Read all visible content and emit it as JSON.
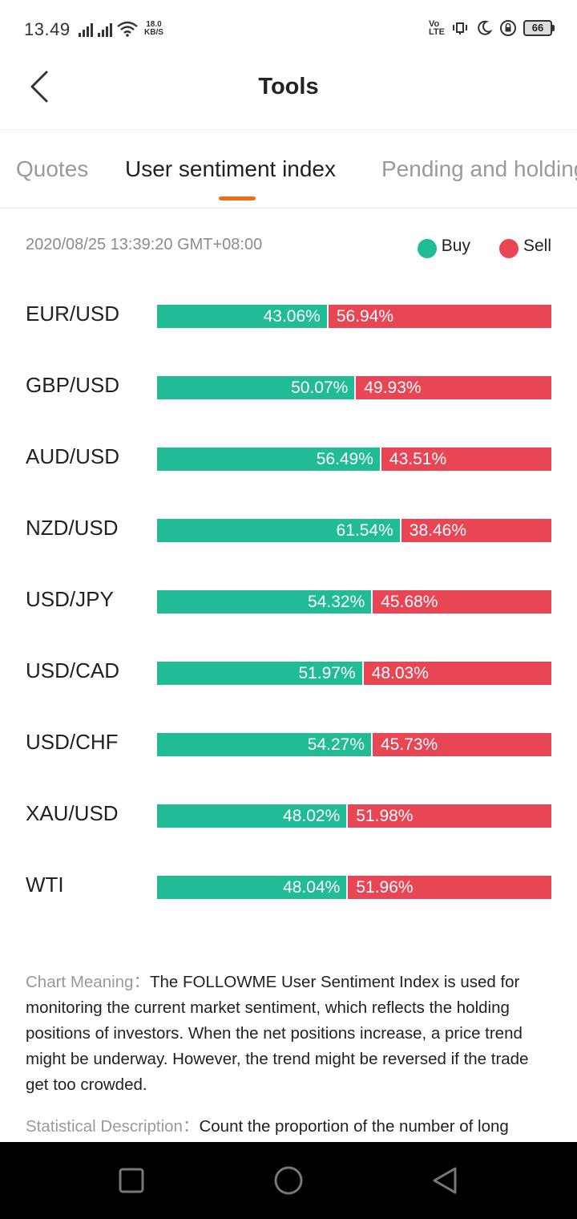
{
  "status_bar": {
    "time": "13.49",
    "net_speed_value": "18.0",
    "net_speed_unit": "KB/S",
    "volte_top": "Vo",
    "volte_bottom": "LTE",
    "battery": "66"
  },
  "header": {
    "title": "Tools"
  },
  "tabs": [
    {
      "label": "Quotes",
      "active": false
    },
    {
      "label": "User sentiment index",
      "active": true
    },
    {
      "label": "Pending and holdings",
      "active": false
    }
  ],
  "timestamp": "2020/08/25 13:39:20 GMT+08:00",
  "legend": {
    "buy": "Buy",
    "sell": "Sell"
  },
  "colors": {
    "buy": "#21bb95",
    "sell": "#e84655",
    "accent": "#f26b1d"
  },
  "sentiment": [
    {
      "pair": "EUR/USD",
      "buy": 43.06,
      "sell": 56.94,
      "buy_label": "43.06%",
      "sell_label": "56.94%"
    },
    {
      "pair": "GBP/USD",
      "buy": 50.07,
      "sell": 49.93,
      "buy_label": "50.07%",
      "sell_label": "49.93%"
    },
    {
      "pair": "AUD/USD",
      "buy": 56.49,
      "sell": 43.51,
      "buy_label": "56.49%",
      "sell_label": "43.51%"
    },
    {
      "pair": "NZD/USD",
      "buy": 61.54,
      "sell": 38.46,
      "buy_label": "61.54%",
      "sell_label": "38.46%"
    },
    {
      "pair": "USD/JPY",
      "buy": 54.32,
      "sell": 45.68,
      "buy_label": "54.32%",
      "sell_label": "45.68%"
    },
    {
      "pair": "USD/CAD",
      "buy": 51.97,
      "sell": 48.03,
      "buy_label": "51.97%",
      "sell_label": "48.03%"
    },
    {
      "pair": "USD/CHF",
      "buy": 54.27,
      "sell": 45.73,
      "buy_label": "54.27%",
      "sell_label": "45.73%"
    },
    {
      "pair": "XAU/USD",
      "buy": 48.02,
      "sell": 51.98,
      "buy_label": "48.02%",
      "sell_label": "51.98%"
    },
    {
      "pair": "WTI",
      "buy": 48.04,
      "sell": 51.96,
      "buy_label": "48.04%",
      "sell_label": "51.96%"
    }
  ],
  "description": {
    "chart_meaning_label": "Chart Meaning：",
    "chart_meaning_text": "The FOLLOWME User Sentiment Index is used for monitoring the current market sentiment, which reflects the holding positions of investors. When the net positions increase, a price trend might be underway. However, the trend might be reversed if the trade get too crowded.",
    "stat_label": "Statistical Description：",
    "stat_text": "Count the proportion of the number of long"
  },
  "nav_bar": {
    "recent_icon": "square-icon",
    "home_icon": "circle-icon",
    "back_icon": "triangle-back-icon"
  }
}
